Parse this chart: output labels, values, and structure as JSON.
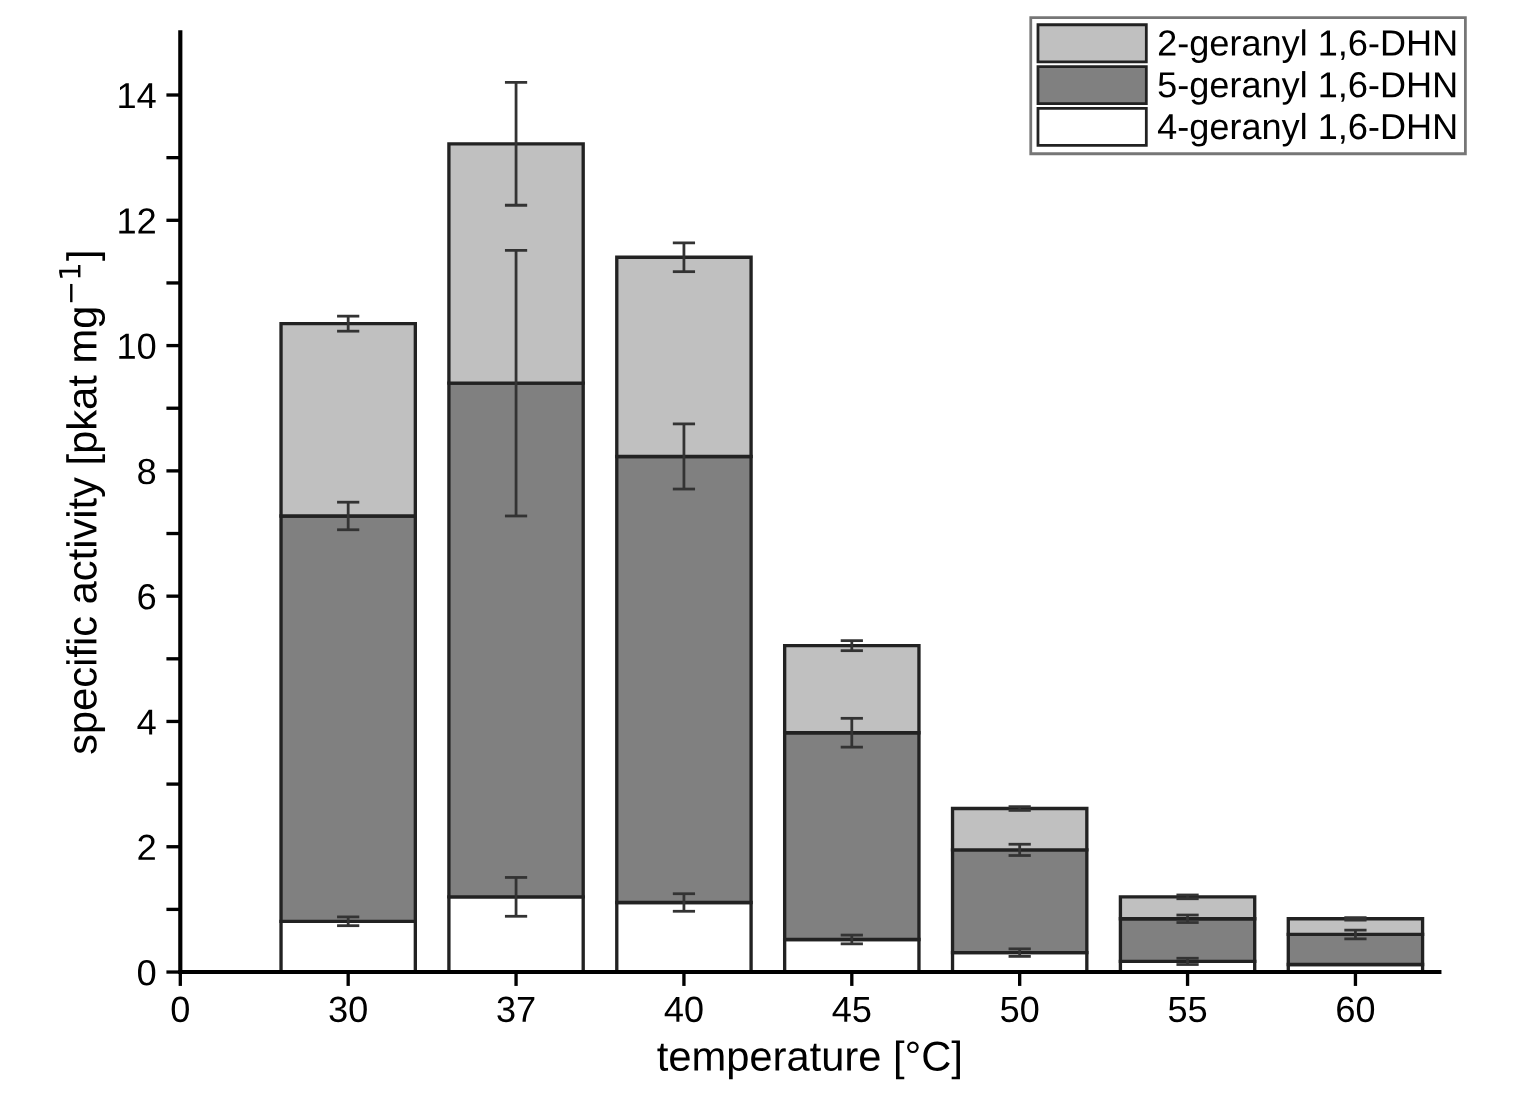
{
  "chart_data": {
    "type": "bar",
    "stacked": true,
    "xlabel": "temperature [°C]",
    "ylabel": "specific activity [pkat mg$^{−1}$]",
    "categories": [
      "0",
      "30",
      "37",
      "40",
      "45",
      "50",
      "55",
      "60"
    ],
    "series": [
      {
        "name": "4-geranyl 1,6-DHN",
        "color": "#ffffff",
        "values": [
          null,
          0.81,
          1.2,
          1.11,
          0.52,
          0.31,
          0.17,
          0.12
        ],
        "errors": [
          null,
          0.07,
          0.31,
          0.14,
          0.07,
          0.06,
          0.05,
          null
        ]
      },
      {
        "name": "5-geranyl 1,6-DHN",
        "color": "#808080",
        "values": [
          null,
          6.47,
          8.2,
          7.12,
          3.3,
          1.64,
          0.68,
          0.48
        ],
        "errors": [
          null,
          0.22,
          2.12,
          0.52,
          0.23,
          0.09,
          0.06,
          0.07
        ]
      },
      {
        "name": "2-geranyl 1,6-DHN",
        "color": "#c0c0c0",
        "values": [
          null,
          3.07,
          3.82,
          3.18,
          1.39,
          0.66,
          0.35,
          0.25
        ],
        "errors": [
          null,
          0.12,
          0.98,
          0.23,
          0.08,
          0.03,
          0.03,
          0.02
        ]
      }
    ],
    "ylim": [
      0,
      15
    ],
    "yticks": [
      0,
      {
        "value": 1,
        "label": null
      },
      2,
      {
        "value": 3,
        "label": null
      },
      4,
      {
        "value": 5,
        "label": null
      },
      6,
      {
        "value": 7,
        "label": null
      },
      8,
      {
        "value": 9,
        "label": null
      },
      10,
      {
        "value": 11,
        "label": null
      },
      12,
      {
        "value": 13,
        "label": null
      },
      14
    ],
    "legend": "top right",
    "grid": false
  }
}
